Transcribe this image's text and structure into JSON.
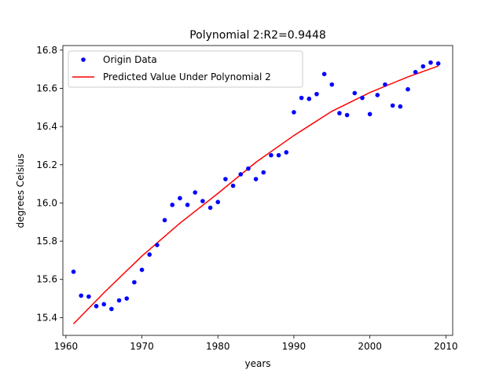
{
  "chart_data": {
    "type": "scatter",
    "title": "Polynomial 2:R2=0.9448",
    "xlabel": "years",
    "ylabel": "degrees Celsius",
    "xlim": [
      1959.6,
      2010.9
    ],
    "ylim": [
      15.307,
      16.824
    ],
    "xticks": [
      1960,
      1970,
      1980,
      1990,
      2000,
      2010
    ],
    "yticks": [
      15.4,
      15.6,
      15.8,
      16.0,
      16.2,
      16.4,
      16.6,
      16.8
    ],
    "grid": false,
    "legend_position": "upper left",
    "series": [
      {
        "name": "Origin Data",
        "kind": "scatter",
        "color": "#0000ff",
        "x": [
          1961,
          1962,
          1963,
          1964,
          1965,
          1966,
          1967,
          1968,
          1969,
          1970,
          1971,
          1972,
          1973,
          1974,
          1975,
          1976,
          1977,
          1978,
          1979,
          1980,
          1981,
          1982,
          1983,
          1984,
          1985,
          1986,
          1987,
          1988,
          1989,
          1990,
          1991,
          1992,
          1993,
          1994,
          1995,
          1996,
          1997,
          1998,
          1999,
          2000,
          2001,
          2002,
          2003,
          2004,
          2005,
          2006,
          2007,
          2008,
          2009
        ],
        "y": [
          15.64,
          15.515,
          15.51,
          15.46,
          15.47,
          15.445,
          15.49,
          15.5,
          15.585,
          15.65,
          15.73,
          15.78,
          15.91,
          15.99,
          16.025,
          15.99,
          16.055,
          16.01,
          15.975,
          16.005,
          16.125,
          16.09,
          16.15,
          16.18,
          16.125,
          16.16,
          16.25,
          16.25,
          16.265,
          16.475,
          16.55,
          16.545,
          16.57,
          16.675,
          16.62,
          16.47,
          16.46,
          16.575,
          16.55,
          16.465,
          16.565,
          16.62,
          16.51,
          16.505,
          16.595,
          16.685,
          16.715,
          16.735,
          16.73
        ]
      },
      {
        "name": "Predicted Value Under Polynomial 2",
        "kind": "line",
        "color": "#ff0000",
        "x": [
          1961,
          1965,
          1970,
          1975,
          1980,
          1985,
          1990,
          1995,
          2000,
          2005,
          2009
        ],
        "y": [
          15.367,
          15.53,
          15.722,
          15.894,
          16.05,
          16.213,
          16.353,
          16.48,
          16.578,
          16.66,
          16.717
        ]
      }
    ]
  }
}
